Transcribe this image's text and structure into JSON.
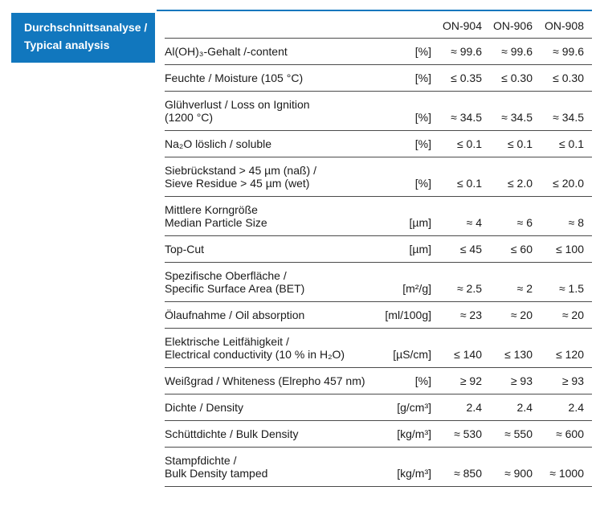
{
  "colors": {
    "accent_blue": "#1177be",
    "border_gray": "#4b4b4b",
    "text": "#1a1a1a",
    "title_text": "#ffffff"
  },
  "title_block": {
    "line1": "Durchschnittsanalyse /",
    "line2": "Typical analysis"
  },
  "table": {
    "columns": [
      "ON-904",
      "ON-906",
      "ON-908"
    ],
    "rows": [
      {
        "label_lines": [
          "Al(OH)₃-Gehalt /-content"
        ],
        "unit": "[%]",
        "values": [
          "≈ 99.6",
          "≈ 99.6",
          "≈ 99.6"
        ]
      },
      {
        "label_lines": [
          "Feuchte / Moisture (105 °C)"
        ],
        "unit": "[%]",
        "values": [
          "≤ 0.35",
          "≤ 0.30",
          "≤ 0.30"
        ]
      },
      {
        "label_lines": [
          "Glühverlust / Loss on Ignition",
          "(1200 °C)"
        ],
        "unit": "[%]",
        "values": [
          "≈ 34.5",
          "≈ 34.5",
          "≈ 34.5"
        ]
      },
      {
        "label_lines": [
          "Na₂O löslich / soluble"
        ],
        "unit": "[%]",
        "values": [
          "≤ 0.1",
          "≤ 0.1",
          "≤ 0.1"
        ]
      },
      {
        "label_lines": [
          "Siebrückstand > 45 µm (naß) /",
          "Sieve Residue > 45 µm (wet)"
        ],
        "unit": "[%]",
        "values": [
          "≤ 0.1",
          "≤ 2.0",
          "≤ 20.0"
        ]
      },
      {
        "label_lines": [
          "Mittlere Korngröße",
          "Median Particle Size"
        ],
        "unit": "[µm]",
        "values": [
          "≈ 4",
          "≈ 6",
          "≈ 8"
        ]
      },
      {
        "label_lines": [
          "Top-Cut"
        ],
        "unit": "[µm]",
        "values": [
          "≤ 45",
          "≤ 60",
          "≤ 100"
        ]
      },
      {
        "label_lines": [
          "Spezifische Oberfläche /",
          "Specific Surface Area (BET)"
        ],
        "unit": "[m²/g]",
        "values": [
          "≈ 2.5",
          "≈ 2",
          "≈ 1.5"
        ]
      },
      {
        "label_lines": [
          "Ölaufnahme / Oil absorption"
        ],
        "unit": "[ml/100g]",
        "values": [
          "≈ 23",
          "≈ 20",
          "≈ 20"
        ]
      },
      {
        "label_lines": [
          "Elektrische Leitfähigkeit /",
          "Electrical conductivity (10 % in H₂O)"
        ],
        "unit": "[µS/cm]",
        "values": [
          "≤ 140",
          "≤ 130",
          "≤ 120"
        ]
      },
      {
        "label_lines": [
          "Weißgrad / Whiteness (Elrepho 457 nm)"
        ],
        "unit": "[%]",
        "values": [
          "≥ 92",
          "≥ 93",
          "≥ 93"
        ]
      },
      {
        "label_lines": [
          "Dichte / Density"
        ],
        "unit": "[g/cm³]",
        "values": [
          "2.4",
          "2.4",
          "2.4"
        ]
      },
      {
        "label_lines": [
          "Schüttdichte / Bulk Density"
        ],
        "unit": "[kg/m³]",
        "values": [
          "≈ 530",
          "≈ 550",
          "≈ 600"
        ]
      },
      {
        "label_lines": [
          "Stampfdichte /",
          "Bulk Density tamped"
        ],
        "unit": "[kg/m³]",
        "values": [
          "≈ 850",
          "≈ 900",
          "≈ 1000"
        ]
      }
    ]
  }
}
